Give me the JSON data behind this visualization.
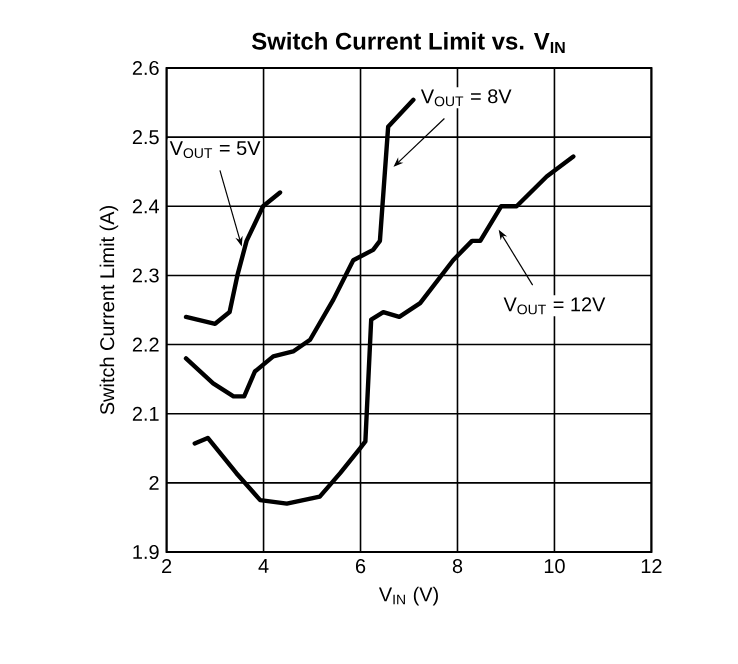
{
  "chart_data": {
    "type": "line",
    "title": "Switch Current Limit vs. V$_{IN}$",
    "xlabel": "V$_{IN}$ (V)",
    "ylabel": "Switch Current Limit (A)",
    "xlim": [
      2,
      12
    ],
    "ylim": [
      1.9,
      2.6
    ],
    "xticks": [
      2,
      4,
      6,
      8,
      10,
      12
    ],
    "yticks": [
      1.9,
      2,
      2.1,
      2.2,
      2.3,
      2.4,
      2.5,
      2.6
    ],
    "grid": true,
    "marker": "none",
    "line_style": "solid",
    "series": [
      {
        "color": "#000000",
        "x": [
          2.4,
          3.0,
          3.3,
          3.46,
          3.65,
          3.99,
          4.34
        ],
        "values": [
          2.24,
          2.23,
          2.247,
          2.3,
          2.35,
          2.4,
          2.42
        ]
      },
      {
        "color": "#000000",
        "x": [
          2.4,
          2.96,
          3.38,
          3.6,
          3.82,
          4.2,
          4.61,
          4.96,
          5.44,
          5.85,
          6.26,
          6.4,
          6.57,
          7.09
        ],
        "values": [
          2.18,
          2.144,
          2.125,
          2.125,
          2.161,
          2.183,
          2.19,
          2.207,
          2.265,
          2.322,
          2.337,
          2.35,
          2.515,
          2.554
        ]
      },
      {
        "color": "#000000",
        "x": [
          2.58,
          2.85,
          3.44,
          3.93,
          4.48,
          5.16,
          5.58,
          5.99,
          6.1,
          6.22,
          6.47,
          6.8,
          7.23,
          7.91,
          8.3,
          8.47,
          8.9,
          9.22,
          9.84,
          10.39
        ],
        "values": [
          2.057,
          2.065,
          2.014,
          1.975,
          1.97,
          1.98,
          2.014,
          2.05,
          2.06,
          2.236,
          2.247,
          2.24,
          2.26,
          2.322,
          2.35,
          2.35,
          2.4,
          2.4,
          2.443,
          2.472
        ]
      }
    ],
    "annotations": [
      {
        "text": "V$_{OUT}$ = 5V",
        "x": 3.55,
        "y": 2.342
      },
      {
        "text": "V$_{OUT}$ = 8V",
        "x": 6.68,
        "y": 2.457
      },
      {
        "text": "V$_{OUT}$ = 12V",
        "x": 8.85,
        "y": 2.366
      }
    ]
  }
}
